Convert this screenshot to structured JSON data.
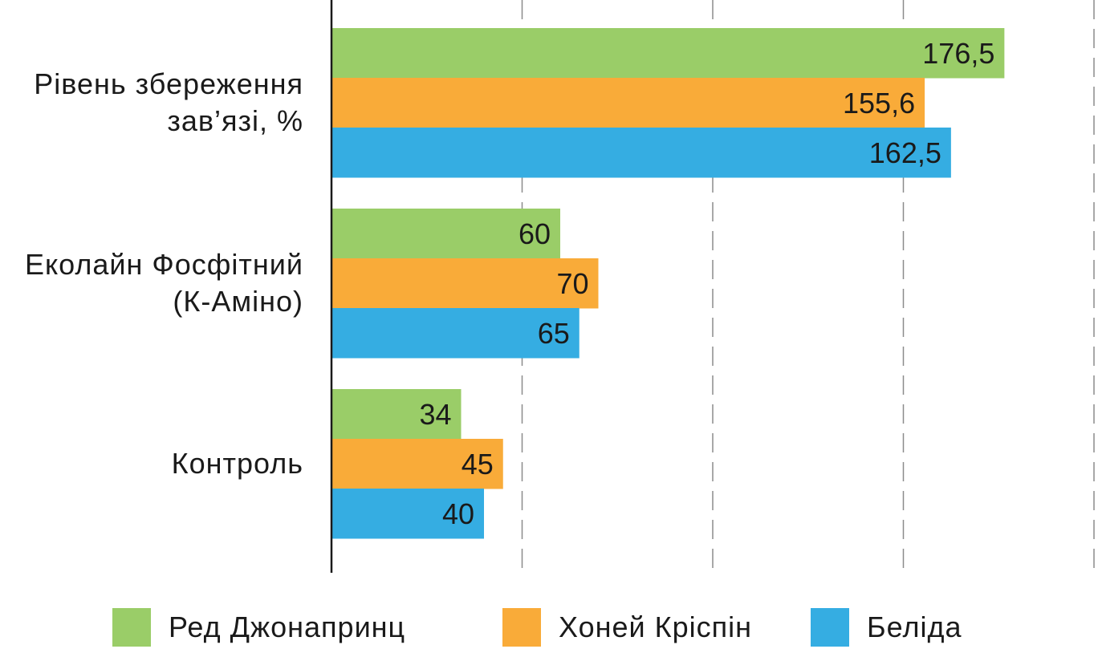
{
  "chart_data": {
    "type": "bar",
    "orientation": "horizontal",
    "categories": [
      "Рівень збереження зав’язі, %",
      "Еколайн Фосфітний (К-Аміно)",
      "Контроль"
    ],
    "category_lines": [
      [
        "Рівень збереження",
        "зав’язі, %"
      ],
      [
        "Еколайн Фосфітний",
        "(К-Аміно)"
      ],
      [
        "Контроль"
      ]
    ],
    "series": [
      {
        "name": "Ред Джонапринц",
        "color": "#9acd68",
        "values": [
          176.5,
          60,
          34
        ],
        "labels": [
          "176,5",
          "60",
          "34"
        ]
      },
      {
        "name": "Хоней Кріспін",
        "color": "#f9ab39",
        "values": [
          155.6,
          70,
          45
        ],
        "labels": [
          "155,6",
          "70",
          "45"
        ]
      },
      {
        "name": "Беліда",
        "color": "#35ade2",
        "values": [
          162.5,
          65,
          40
        ],
        "labels": [
          "162,5",
          "65",
          "40"
        ]
      }
    ],
    "xlim": [
      0,
      200
    ],
    "grid": true,
    "gridlines_dashed": true,
    "legend_position": "bottom"
  },
  "legend": {
    "items": [
      {
        "label": "Ред Джонапринц",
        "color": "#9acd68",
        "icon": "green-square"
      },
      {
        "label": "Хоней Кріспін",
        "color": "#f9ab39",
        "icon": "orange-square"
      },
      {
        "label": "Беліда",
        "color": "#35ade2",
        "icon": "blue-square"
      }
    ]
  }
}
